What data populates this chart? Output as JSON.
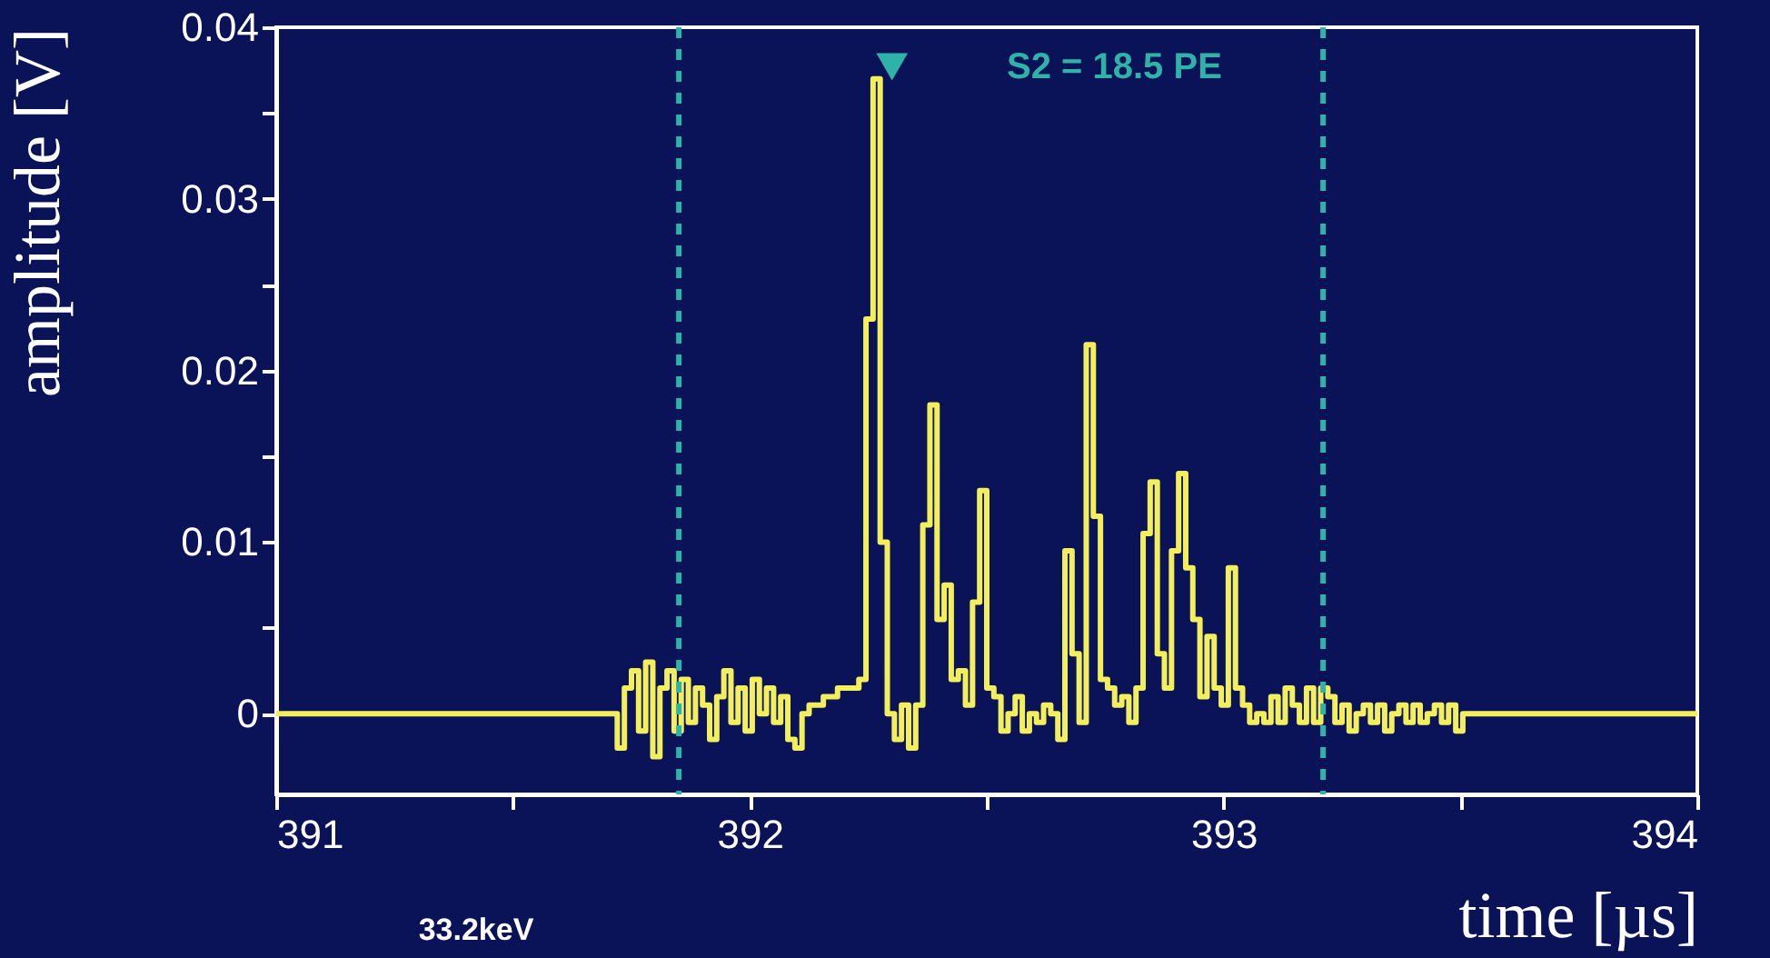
{
  "chart_data": {
    "type": "step",
    "xlabel": "time [µs]",
    "ylabel": "amplitude [V]",
    "xlim": [
      391,
      394
    ],
    "ylim": [
      -0.0047,
      0.04
    ],
    "xticks": [
      391,
      {
        "value": 391.5,
        "label": null
      },
      392,
      {
        "value": 392.5,
        "label": null
      },
      393,
      {
        "value": 393.5,
        "label": null
      },
      394
    ],
    "yticks": [
      0,
      {
        "value": 0.005,
        "label": null
      },
      0.01,
      {
        "value": 0.015,
        "label": null
      },
      0.02,
      {
        "value": 0.025,
        "label": null
      },
      0.03,
      {
        "value": 0.035,
        "label": null
      },
      0.04
    ],
    "grid": false,
    "series": [
      {
        "type": "step",
        "color": "#f2ee5c",
        "x": [
          391.0,
          391.72,
          391.735,
          391.75,
          391.765,
          391.78,
          391.795,
          391.81,
          391.825,
          391.84,
          391.855,
          391.87,
          391.885,
          391.9,
          391.915,
          391.93,
          391.945,
          391.96,
          391.975,
          391.99,
          392.005,
          392.02,
          392.035,
          392.05,
          392.065,
          392.08,
          392.095,
          392.11,
          392.125,
          392.14,
          392.155,
          392.17,
          392.185,
          392.2,
          392.215,
          392.23,
          392.245,
          392.26,
          392.275,
          392.29,
          392.305,
          392.32,
          392.335,
          392.35,
          392.365,
          392.38,
          392.395,
          392.41,
          392.425,
          392.44,
          392.455,
          392.47,
          392.485,
          392.5,
          392.515,
          392.53,
          392.545,
          392.56,
          392.575,
          392.59,
          392.605,
          392.62,
          392.635,
          392.65,
          392.665,
          392.68,
          392.695,
          392.71,
          392.725,
          392.74,
          392.755,
          392.77,
          392.785,
          392.8,
          392.815,
          392.83,
          392.845,
          392.86,
          392.875,
          392.89,
          392.905,
          392.92,
          392.935,
          392.95,
          392.965,
          392.98,
          392.995,
          393.01,
          393.025,
          393.04,
          393.055,
          393.07,
          393.085,
          393.1,
          393.115,
          393.13,
          393.145,
          393.16,
          393.175,
          393.19,
          393.205,
          393.22,
          393.235,
          393.25,
          393.265,
          393.28,
          393.295,
          393.31,
          393.325,
          393.34,
          393.355,
          393.37,
          393.385,
          393.4,
          393.415,
          393.43,
          393.445,
          393.46,
          393.475,
          393.49,
          393.505,
          393.52,
          394.0
        ],
        "values": [
          0,
          -0.002,
          0.0015,
          0.0025,
          -0.001,
          0.003,
          -0.0025,
          0.0015,
          0.0025,
          -0.001,
          0.002,
          -0.0005,
          0.0015,
          0.0005,
          -0.0015,
          0.001,
          0.0025,
          -0.0005,
          0.0015,
          -0.001,
          0.002,
          0.0,
          0.0015,
          -0.0005,
          0.001,
          -0.0015,
          -0.002,
          0.0,
          0.0005,
          0.0005,
          0.001,
          0.001,
          0.0015,
          0.0015,
          0.0015,
          0.002,
          0.023,
          0.037,
          0.01,
          0.0,
          -0.0015,
          0.0005,
          -0.002,
          0.0005,
          0.011,
          0.018,
          0.0055,
          0.0075,
          0.002,
          0.0025,
          0.0005,
          0.0065,
          0.013,
          0.0015,
          0.001,
          -0.001,
          0.0,
          0.001,
          -0.001,
          0.0,
          -0.0005,
          0.0005,
          0.0,
          -0.0015,
          0.0095,
          0.0035,
          -0.0005,
          0.0215,
          0.0115,
          0.002,
          0.0015,
          0.0005,
          0.001,
          -0.0005,
          0.0015,
          0.0105,
          0.0135,
          0.0035,
          0.0015,
          0.0095,
          0.014,
          0.0085,
          0.0055,
          0.001,
          0.0045,
          0.0015,
          0.0005,
          0.0085,
          0.0015,
          0.0005,
          -0.0005,
          0.0,
          -0.0005,
          0.001,
          -0.0005,
          0.0015,
          0.0005,
          -0.0005,
          0.0015,
          -0.0005,
          0.0015,
          0.001,
          -0.0005,
          0.0005,
          -0.001,
          0.0,
          0.0005,
          -0.0005,
          0.0005,
          -0.001,
          0.0,
          0.0005,
          -0.0005,
          0.0005,
          -0.0005,
          0.0,
          0.0005,
          -0.0005,
          0.0005,
          -0.001,
          0.0,
          0.0,
          0
        ]
      },
      {
        "type": "scatter",
        "color": "#2fb3a8",
        "marker": "triangle",
        "x": [
          392.3
        ],
        "values": [
          0.0377
        ]
      }
    ],
    "ref_lines": [
      {
        "axis": "x",
        "value": 391.85,
        "color": "#2fb3a8",
        "line_style": "dashed"
      },
      {
        "axis": "x",
        "value": 393.21,
        "color": "#2fb3a8",
        "line_style": "dashed"
      }
    ],
    "annotations": [
      "S2 = 18.5 PE",
      "33.2keV"
    ]
  }
}
